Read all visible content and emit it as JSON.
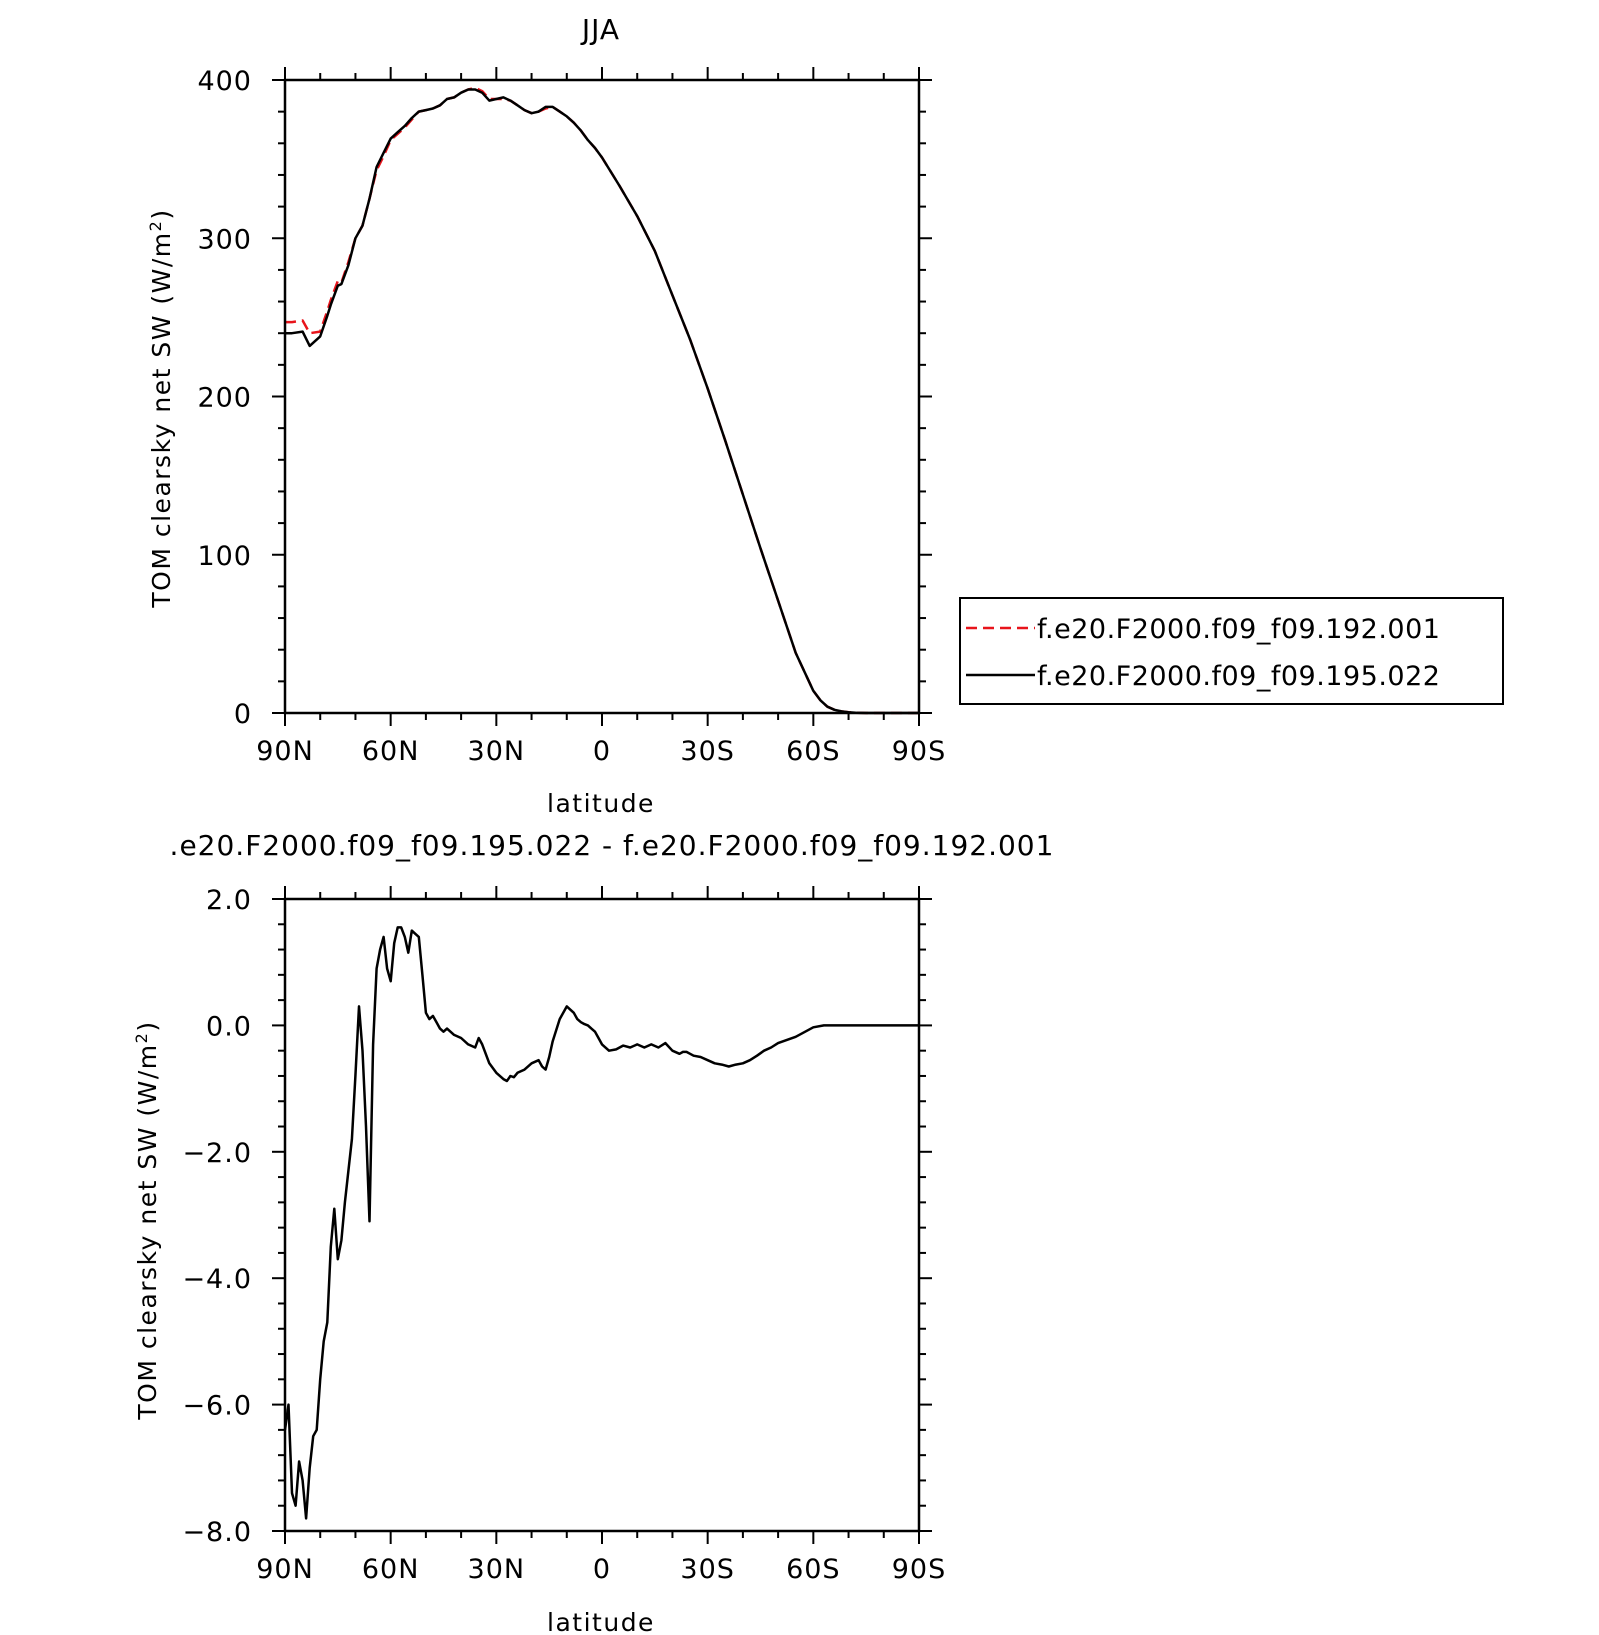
{
  "chart_data": [
    {
      "type": "line",
      "title": "JJA",
      "xlabel": "latitude",
      "ylabel": "TOM clearsky net SW (W/m",
      "ylabel_sup": "2",
      "ylabel_end": ")",
      "xlim": [
        90,
        -90
      ],
      "ylim": [
        0,
        400
      ],
      "xticks": [
        90,
        60,
        30,
        0,
        -30,
        -60,
        -90
      ],
      "xtick_labels": [
        "90N",
        "60N",
        "30N",
        "0",
        "30S",
        "60S",
        "90S"
      ],
      "yticks": [
        0,
        100,
        200,
        300,
        400
      ],
      "ytick_labels": [
        "0",
        "100",
        "200",
        "300",
        "400"
      ],
      "grid": false,
      "legend": "right",
      "series": [
        {
          "name": "f.e20.F2000.f09_f09.192.001",
          "color": "#e8141b",
          "dash": "dashed",
          "x": [
            90,
            88,
            85,
            83,
            80,
            78,
            77,
            75,
            74,
            72,
            70,
            68,
            66,
            64,
            62,
            60,
            58,
            56,
            54,
            52,
            50,
            48,
            46,
            44,
            42,
            40,
            38,
            36,
            34,
            32,
            30,
            28,
            26,
            24,
            22,
            20,
            18,
            16,
            14,
            12,
            10,
            8,
            6,
            4,
            2,
            0,
            -5,
            -10,
            -15,
            -20,
            -25,
            -30,
            -35,
            -40,
            -45,
            -50,
            -55,
            -60,
            -62,
            -64,
            -66,
            -68,
            -70,
            -72,
            -75,
            -78,
            -80,
            -82,
            -85,
            -88,
            -90
          ],
          "y": [
            247,
            247,
            248,
            240,
            241,
            254,
            261,
            273,
            272,
            285,
            300,
            308,
            325,
            343,
            352,
            362,
            366,
            370,
            375,
            380,
            381,
            382,
            384,
            388,
            389,
            392,
            394,
            395,
            393,
            388,
            388,
            388,
            387,
            384,
            381,
            379,
            380,
            382,
            383,
            380,
            377,
            373,
            368,
            362,
            357,
            351,
            333,
            314,
            292,
            264,
            236,
            205,
            172,
            138,
            104,
            71,
            38,
            14,
            8,
            4,
            2,
            1,
            0.5,
            0.2,
            0,
            0,
            0,
            0,
            0,
            0,
            0
          ]
        },
        {
          "name": "f.e20.F2000.f09_f09.195.022",
          "color": "#000000",
          "dash": "solid",
          "x": [
            90,
            88,
            85,
            83,
            80,
            78,
            77,
            75,
            74,
            72,
            70,
            68,
            66,
            64,
            62,
            60,
            58,
            56,
            54,
            52,
            50,
            48,
            46,
            44,
            42,
            40,
            38,
            36,
            34,
            32,
            30,
            28,
            26,
            24,
            22,
            20,
            18,
            16,
            14,
            12,
            10,
            8,
            6,
            4,
            2,
            0,
            -5,
            -10,
            -15,
            -20,
            -25,
            -30,
            -35,
            -40,
            -45,
            -50,
            -55,
            -60,
            -62,
            -64,
            -66,
            -68,
            -70,
            -72,
            -75,
            -78,
            -80,
            -82,
            -85,
            -88,
            -90
          ],
          "y": [
            240,
            240,
            241,
            232,
            238,
            251,
            258,
            270,
            271,
            283,
            300,
            308,
            325,
            345,
            354,
            363,
            367,
            371,
            376,
            380,
            381,
            382,
            384,
            388,
            389,
            392,
            394,
            394,
            392,
            387,
            388,
            389,
            387,
            384,
            381,
            379,
            380,
            383,
            383,
            380,
            377,
            373,
            368,
            362,
            357,
            351,
            333,
            314,
            292,
            264,
            236,
            205,
            172,
            138,
            104,
            71,
            38,
            14,
            8,
            4,
            2,
            1,
            0.5,
            0.2,
            0,
            0,
            0,
            0,
            0,
            0,
            0
          ]
        }
      ]
    },
    {
      "type": "line",
      "title": ".e20.F2000.f09_f09.195.022 - f.e20.F2000.f09_f09.192.001",
      "xlabel": "latitude",
      "ylabel": "TOM clearsky net SW (W/m",
      "ylabel_sup": "2",
      "ylabel_end": ")",
      "xlim": [
        90,
        -90
      ],
      "ylim": [
        -8,
        2
      ],
      "xticks": [
        90,
        60,
        30,
        0,
        -30,
        -60,
        -90
      ],
      "xtick_labels": [
        "90N",
        "60N",
        "30N",
        "0",
        "30S",
        "60S",
        "90S"
      ],
      "yticks": [
        -8,
        -6,
        -4,
        -2,
        0,
        2
      ],
      "ytick_labels": [
        "−8.0",
        "−6.0",
        "−4.0",
        "−2.0",
        "0.0",
        "2.0"
      ],
      "grid": false,
      "series": [
        {
          "color": "#000000",
          "x": [
            90,
            89,
            88,
            87,
            86,
            85,
            84,
            83,
            82,
            81,
            80,
            79,
            78,
            77,
            76,
            75,
            74,
            73,
            72,
            71,
            70,
            69,
            68,
            67,
            66,
            65,
            64,
            63,
            62,
            61,
            60,
            59,
            58,
            57,
            56,
            55,
            54,
            53,
            52,
            51,
            50,
            49,
            48,
            47,
            46,
            45,
            44,
            42,
            40,
            38,
            36,
            35,
            34,
            32,
            30,
            28,
            27,
            26,
            25,
            24,
            22,
            20,
            18,
            17,
            16,
            15,
            14,
            12,
            10,
            8,
            7,
            6,
            5,
            4,
            3,
            2,
            1,
            0,
            -2,
            -4,
            -6,
            -8,
            -10,
            -12,
            -14,
            -16,
            -18,
            -20,
            -22,
            -23,
            -24,
            -25,
            -26,
            -28,
            -30,
            -32,
            -34,
            -36,
            -38,
            -40,
            -42,
            -44,
            -46,
            -48,
            -50,
            -55,
            -60,
            -63,
            -65,
            -68,
            -70,
            -75,
            -80,
            -85,
            -90
          ],
          "y": [
            -6.4,
            -6.0,
            -7.4,
            -7.6,
            -6.9,
            -7.2,
            -7.8,
            -7.0,
            -6.5,
            -6.4,
            -5.6,
            -5.0,
            -4.7,
            -3.5,
            -2.9,
            -3.7,
            -3.4,
            -2.8,
            -2.3,
            -1.8,
            -0.8,
            0.3,
            -0.4,
            -1.6,
            -3.1,
            -0.3,
            0.9,
            1.2,
            1.4,
            0.9,
            0.7,
            1.3,
            1.55,
            1.55,
            1.4,
            1.15,
            1.5,
            1.45,
            1.4,
            0.8,
            0.2,
            0.1,
            0.15,
            0.05,
            -0.05,
            -0.1,
            -0.05,
            -0.15,
            -0.2,
            -0.3,
            -0.35,
            -0.2,
            -0.3,
            -0.6,
            -0.75,
            -0.85,
            -0.88,
            -0.8,
            -0.82,
            -0.75,
            -0.7,
            -0.6,
            -0.55,
            -0.65,
            -0.7,
            -0.5,
            -0.25,
            0.1,
            0.3,
            0.2,
            0.1,
            0.05,
            0.02,
            0.0,
            -0.05,
            -0.1,
            -0.2,
            -0.3,
            -0.4,
            -0.38,
            -0.32,
            -0.35,
            -0.3,
            -0.35,
            -0.3,
            -0.35,
            -0.28,
            -0.4,
            -0.45,
            -0.42,
            -0.42,
            -0.45,
            -0.48,
            -0.5,
            -0.55,
            -0.6,
            -0.62,
            -0.65,
            -0.62,
            -0.6,
            -0.55,
            -0.48,
            -0.4,
            -0.35,
            -0.28,
            -0.18,
            -0.03,
            0.0,
            0.0,
            0.0,
            0.0,
            0.0,
            0.0,
            0.0,
            0.0
          ]
        }
      ]
    }
  ]
}
